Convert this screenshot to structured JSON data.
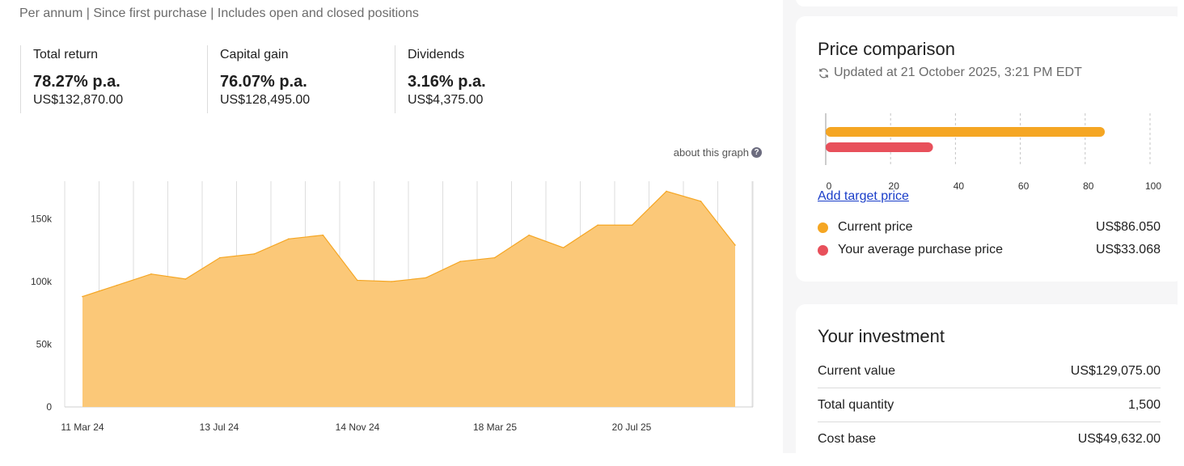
{
  "subtitle": "Per annum | Since first purchase | Includes open and closed positions",
  "stats": [
    {
      "label": "Total return",
      "value": "78.27% p.a.",
      "amount": "US$132,870.00"
    },
    {
      "label": "Capital gain",
      "value": "76.07% p.a.",
      "amount": "US$128,495.00"
    },
    {
      "label": "Dividends",
      "value": "3.16% p.a.",
      "amount": "US$4,375.00"
    }
  ],
  "about_graph": "about this graph",
  "help_icon_glyph": "?",
  "chart_data": {
    "type": "area",
    "color": "#fbc878",
    "line_color": "#f5a623",
    "y_ticks": [
      0,
      50000,
      100000,
      150000
    ],
    "y_tick_labels": [
      "0",
      "50k",
      "100k",
      "150k"
    ],
    "ylim": [
      0,
      180000
    ],
    "x_labels": [
      "11 Mar 24",
      "13 Jul 24",
      "14 Nov 24",
      "18 Mar 25",
      "20 Jul 25"
    ],
    "values": [
      88000,
      97000,
      106000,
      102000,
      119000,
      122000,
      134000,
      137000,
      101000,
      100000,
      103000,
      116000,
      119000,
      137000,
      127000,
      145000,
      145000,
      172000,
      164000,
      129000
    ],
    "grid": true
  },
  "price_comparison": {
    "title": "Price comparison",
    "updated": "Updated at 21 October 2025, 3:21 PM EDT",
    "chart_data": {
      "type": "bar",
      "orientation": "horizontal",
      "xlim": [
        0,
        100
      ],
      "x_ticks": [
        "0",
        "20",
        "40",
        "60",
        "80",
        "100"
      ],
      "bars": [
        {
          "name": "Current price",
          "value": 86.05,
          "color": "#f5a623"
        },
        {
          "name": "Your average purchase price",
          "value": 33.068,
          "color": "#e8505b"
        }
      ]
    },
    "add_target": "Add target price",
    "legend": [
      {
        "label": "Current price",
        "value": "US$86.050",
        "color": "#f5a623"
      },
      {
        "label": "Your average purchase price",
        "value": "US$33.068",
        "color": "#e8505b"
      }
    ]
  },
  "investment": {
    "title": "Your investment",
    "rows": [
      {
        "label": "Current value",
        "value": "US$129,075.00"
      },
      {
        "label": "Total quantity",
        "value": "1,500"
      },
      {
        "label": "Cost base",
        "value": "US$49,632.00"
      }
    ]
  }
}
